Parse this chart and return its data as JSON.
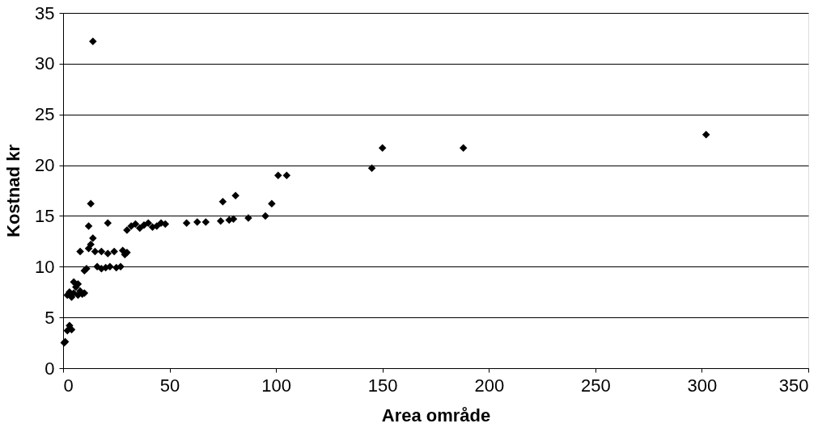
{
  "chart_data": {
    "type": "scatter",
    "xlabel": "Area område",
    "ylabel": "Kostnad kr",
    "x": [
      0.5,
      1,
      2,
      3,
      4,
      2,
      3,
      4,
      5,
      6,
      7,
      8,
      9,
      10,
      5,
      7,
      8,
      10,
      11,
      12,
      12,
      13,
      13,
      14,
      14,
      15,
      16,
      18,
      18,
      20,
      21,
      21,
      22,
      24,
      25,
      27,
      28,
      29,
      30,
      30,
      32,
      34,
      36,
      38,
      40,
      42,
      44,
      46,
      48,
      58,
      63,
      67,
      74,
      75,
      78,
      80,
      81,
      87,
      95,
      98,
      101,
      105,
      145,
      150,
      188,
      302
    ],
    "series": [
      {
        "color": "#000000",
        "values": [
          2.5,
          2.6,
          3.7,
          4.2,
          3.8,
          7.2,
          7.5,
          7.0,
          7.4,
          8.0,
          7.2,
          7.6,
          7.3,
          7.4,
          8.5,
          8.3,
          11.5,
          9.6,
          9.8,
          11.8,
          14.0,
          16.2,
          12.2,
          12.8,
          32.2,
          11.5,
          10.0,
          9.8,
          11.5,
          9.9,
          14.3,
          11.3,
          10.0,
          11.5,
          9.9,
          10.0,
          11.6,
          11.2,
          11.4,
          13.6,
          14.0,
          14.2,
          13.8,
          14.1,
          14.3,
          13.9,
          14.0,
          14.3,
          14.2,
          14.3,
          14.4,
          14.4,
          14.5,
          16.4,
          14.6,
          14.7,
          17.0,
          14.8,
          15.0,
          16.2,
          19.0,
          19.0,
          19.7,
          21.7,
          21.7,
          23.0
        ]
      }
    ],
    "xlim": [
      0,
      350
    ],
    "xticks": [
      0,
      50,
      100,
      150,
      200,
      250,
      300,
      350
    ],
    "ylim": [
      0,
      35
    ],
    "yticks": [
      0,
      5,
      10,
      15,
      20,
      25,
      30,
      35
    ],
    "grid": "y",
    "marker": "diamond"
  }
}
